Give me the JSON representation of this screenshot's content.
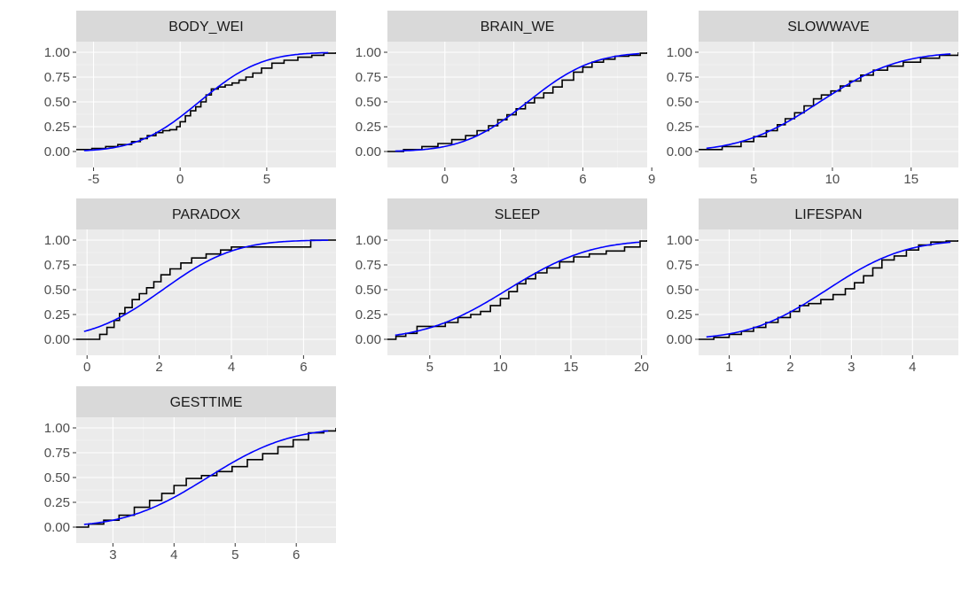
{
  "chart_data": [
    {
      "type": "line",
      "title": "BODY_WEI",
      "xlim": [
        -6.0,
        9.0
      ],
      "ylim": [
        0,
        1
      ],
      "xticks": [
        -5,
        0,
        5
      ],
      "yticks": [
        0.0,
        0.25,
        0.5,
        0.75,
        1.0
      ],
      "ytick_labels": [
        "0.00",
        "0.25",
        "0.50",
        "0.75",
        "1.00"
      ],
      "grid": true,
      "series": [
        {
          "kind": "step",
          "color": "#000000",
          "x": [
            -6.0,
            -5.1,
            -4.3,
            -3.6,
            -2.8,
            -2.3,
            -1.9,
            -1.4,
            -1.0,
            -0.6,
            -0.2,
            0.0,
            0.3,
            0.6,
            0.9,
            1.2,
            1.5,
            1.8,
            2.2,
            2.6,
            3.0,
            3.4,
            3.8,
            4.2,
            4.7,
            5.3,
            6.0,
            6.8,
            7.6,
            8.3,
            9.0
          ],
          "y": [
            0.02,
            0.03,
            0.05,
            0.07,
            0.1,
            0.13,
            0.16,
            0.19,
            0.21,
            0.22,
            0.25,
            0.3,
            0.36,
            0.41,
            0.45,
            0.5,
            0.57,
            0.63,
            0.65,
            0.67,
            0.69,
            0.72,
            0.75,
            0.79,
            0.84,
            0.89,
            0.92,
            0.95,
            0.97,
            0.99,
            1.0
          ]
        },
        {
          "kind": "fit",
          "color": "#0000ff",
          "distribution": "normal",
          "mean": 1.1,
          "sd": 2.8
        }
      ]
    },
    {
      "type": "line",
      "title": "BRAIN_WE",
      "xlim": [
        -2.5,
        8.8
      ],
      "ylim": [
        0,
        1
      ],
      "xticks": [
        0,
        3,
        6,
        9
      ],
      "yticks": [
        0.0,
        0.25,
        0.5,
        0.75,
        1.0
      ],
      "ytick_labels": [
        "0.00",
        "0.25",
        "0.50",
        "0.75",
        "1.00"
      ],
      "grid": true,
      "series": [
        {
          "kind": "step",
          "color": "#000000",
          "x": [
            -2.5,
            -1.8,
            -1.0,
            -0.3,
            0.3,
            0.9,
            1.4,
            1.9,
            2.3,
            2.7,
            3.1,
            3.5,
            3.9,
            4.3,
            4.7,
            5.1,
            5.6,
            6.0,
            6.4,
            6.9,
            7.4,
            8.0,
            8.5,
            8.8
          ],
          "y": [
            0.0,
            0.02,
            0.05,
            0.08,
            0.12,
            0.16,
            0.21,
            0.26,
            0.32,
            0.37,
            0.43,
            0.49,
            0.54,
            0.59,
            0.65,
            0.72,
            0.8,
            0.85,
            0.9,
            0.93,
            0.96,
            0.97,
            0.99,
            1.0
          ]
        },
        {
          "kind": "fit",
          "color": "#0000ff",
          "distribution": "normal",
          "mean": 3.6,
          "sd": 2.2
        }
      ]
    },
    {
      "type": "line",
      "title": "SLOWWAVE",
      "xlim": [
        1.5,
        18.0
      ],
      "ylim": [
        0,
        1
      ],
      "xticks": [
        5,
        10,
        15
      ],
      "yticks": [
        0.0,
        0.25,
        0.5,
        0.75,
        1.0
      ],
      "ytick_labels": [
        "0.00",
        "0.25",
        "0.50",
        "0.75",
        "1.00"
      ],
      "grid": true,
      "series": [
        {
          "kind": "step",
          "color": "#000000",
          "x": [
            1.5,
            3.0,
            4.2,
            5.0,
            5.8,
            6.5,
            7.0,
            7.6,
            8.2,
            8.8,
            9.3,
            9.9,
            10.5,
            11.1,
            11.8,
            12.6,
            13.5,
            14.5,
            15.6,
            16.8,
            18.0
          ],
          "y": [
            0.02,
            0.05,
            0.1,
            0.15,
            0.21,
            0.27,
            0.33,
            0.39,
            0.46,
            0.53,
            0.57,
            0.61,
            0.66,
            0.71,
            0.77,
            0.82,
            0.86,
            0.9,
            0.94,
            0.97,
            1.0
          ]
        },
        {
          "kind": "fit",
          "color": "#0000ff",
          "distribution": "normal",
          "mean": 9.2,
          "sd": 3.9
        }
      ]
    },
    {
      "type": "line",
      "title": "PARADOX",
      "xlim": [
        -0.3,
        6.9
      ],
      "ylim": [
        0,
        1
      ],
      "xticks": [
        0,
        2,
        4,
        6
      ],
      "yticks": [
        0.0,
        0.25,
        0.5,
        0.75,
        1.0
      ],
      "ytick_labels": [
        "0.00",
        "0.25",
        "0.50",
        "0.75",
        "1.00"
      ],
      "grid": true,
      "series": [
        {
          "kind": "step",
          "color": "#000000",
          "x": [
            -0.3,
            0.35,
            0.55,
            0.75,
            0.9,
            1.05,
            1.25,
            1.45,
            1.65,
            1.85,
            2.05,
            2.3,
            2.6,
            2.9,
            3.3,
            3.7,
            4.0,
            4.5,
            5.0,
            5.6,
            6.2,
            6.9
          ],
          "y": [
            0.0,
            0.05,
            0.12,
            0.19,
            0.26,
            0.32,
            0.4,
            0.46,
            0.52,
            0.58,
            0.65,
            0.71,
            0.77,
            0.82,
            0.86,
            0.9,
            0.93,
            0.93,
            0.93,
            0.93,
            1.0,
            1.0
          ]
        },
        {
          "kind": "fit",
          "color": "#0000ff",
          "distribution": "normal",
          "mean": 2.1,
          "sd": 1.55
        }
      ]
    },
    {
      "type": "line",
      "title": "SLEEP",
      "xlim": [
        2.0,
        20.4
      ],
      "ylim": [
        0,
        1
      ],
      "xticks": [
        5,
        10,
        15,
        20
      ],
      "yticks": [
        0.0,
        0.25,
        0.5,
        0.75,
        1.0
      ],
      "ytick_labels": [
        "0.00",
        "0.25",
        "0.50",
        "0.75",
        "1.00"
      ],
      "grid": true,
      "series": [
        {
          "kind": "step",
          "color": "#000000",
          "x": [
            2.0,
            2.6,
            3.3,
            4.1,
            5.0,
            6.1,
            7.0,
            7.9,
            8.6,
            9.3,
            10.0,
            10.6,
            11.2,
            11.8,
            12.5,
            13.3,
            14.2,
            15.2,
            16.3,
            17.5,
            18.8,
            19.9,
            20.4
          ],
          "y": [
            0.0,
            0.03,
            0.06,
            0.13,
            0.13,
            0.17,
            0.22,
            0.25,
            0.28,
            0.34,
            0.41,
            0.48,
            0.56,
            0.61,
            0.67,
            0.72,
            0.78,
            0.83,
            0.86,
            0.89,
            0.93,
            0.99,
            1.0
          ]
        },
        {
          "kind": "fit",
          "color": "#0000ff",
          "distribution": "normal",
          "mean": 10.5,
          "sd": 4.6
        }
      ]
    },
    {
      "type": "line",
      "title": "LIFESPAN",
      "xlim": [
        0.5,
        4.75
      ],
      "ylim": [
        0,
        1
      ],
      "xticks": [
        1,
        2,
        3,
        4
      ],
      "yticks": [
        0.0,
        0.25,
        0.5,
        0.75,
        1.0
      ],
      "ytick_labels": [
        "0.00",
        "0.25",
        "0.50",
        "0.75",
        "1.00"
      ],
      "grid": true,
      "series": [
        {
          "kind": "step",
          "color": "#000000",
          "x": [
            0.5,
            0.75,
            1.0,
            1.2,
            1.4,
            1.6,
            1.8,
            2.0,
            2.15,
            2.3,
            2.5,
            2.7,
            2.9,
            3.05,
            3.2,
            3.35,
            3.5,
            3.7,
            3.9,
            4.1,
            4.3,
            4.55,
            4.75
          ],
          "y": [
            0.0,
            0.02,
            0.05,
            0.08,
            0.12,
            0.17,
            0.22,
            0.28,
            0.34,
            0.36,
            0.4,
            0.45,
            0.51,
            0.57,
            0.64,
            0.72,
            0.8,
            0.84,
            0.9,
            0.95,
            0.98,
            0.99,
            1.0
          ]
        },
        {
          "kind": "fit",
          "color": "#0000ff",
          "distribution": "normal",
          "mean": 2.6,
          "sd": 1.0
        }
      ]
    },
    {
      "type": "line",
      "title": "GESTTIME",
      "xlim": [
        2.4,
        6.65
      ],
      "ylim": [
        0,
        1
      ],
      "xticks": [
        3,
        4,
        5,
        6
      ],
      "yticks": [
        0.0,
        0.25,
        0.5,
        0.75,
        1.0
      ],
      "ytick_labels": [
        "0.00",
        "0.25",
        "0.50",
        "0.75",
        "1.00"
      ],
      "grid": true,
      "series": [
        {
          "kind": "step",
          "color": "#000000",
          "x": [
            2.4,
            2.6,
            2.85,
            3.1,
            3.35,
            3.6,
            3.8,
            4.0,
            4.2,
            4.45,
            4.7,
            4.95,
            5.2,
            5.45,
            5.7,
            5.95,
            6.2,
            6.45,
            6.65
          ],
          "y": [
            0.0,
            0.03,
            0.07,
            0.12,
            0.2,
            0.27,
            0.34,
            0.42,
            0.49,
            0.52,
            0.56,
            0.61,
            0.68,
            0.74,
            0.81,
            0.88,
            0.95,
            0.97,
            1.0
          ]
        },
        {
          "kind": "fit",
          "color": "#0000ff",
          "distribution": "normal",
          "mean": 4.55,
          "sd": 1.05
        }
      ]
    }
  ]
}
